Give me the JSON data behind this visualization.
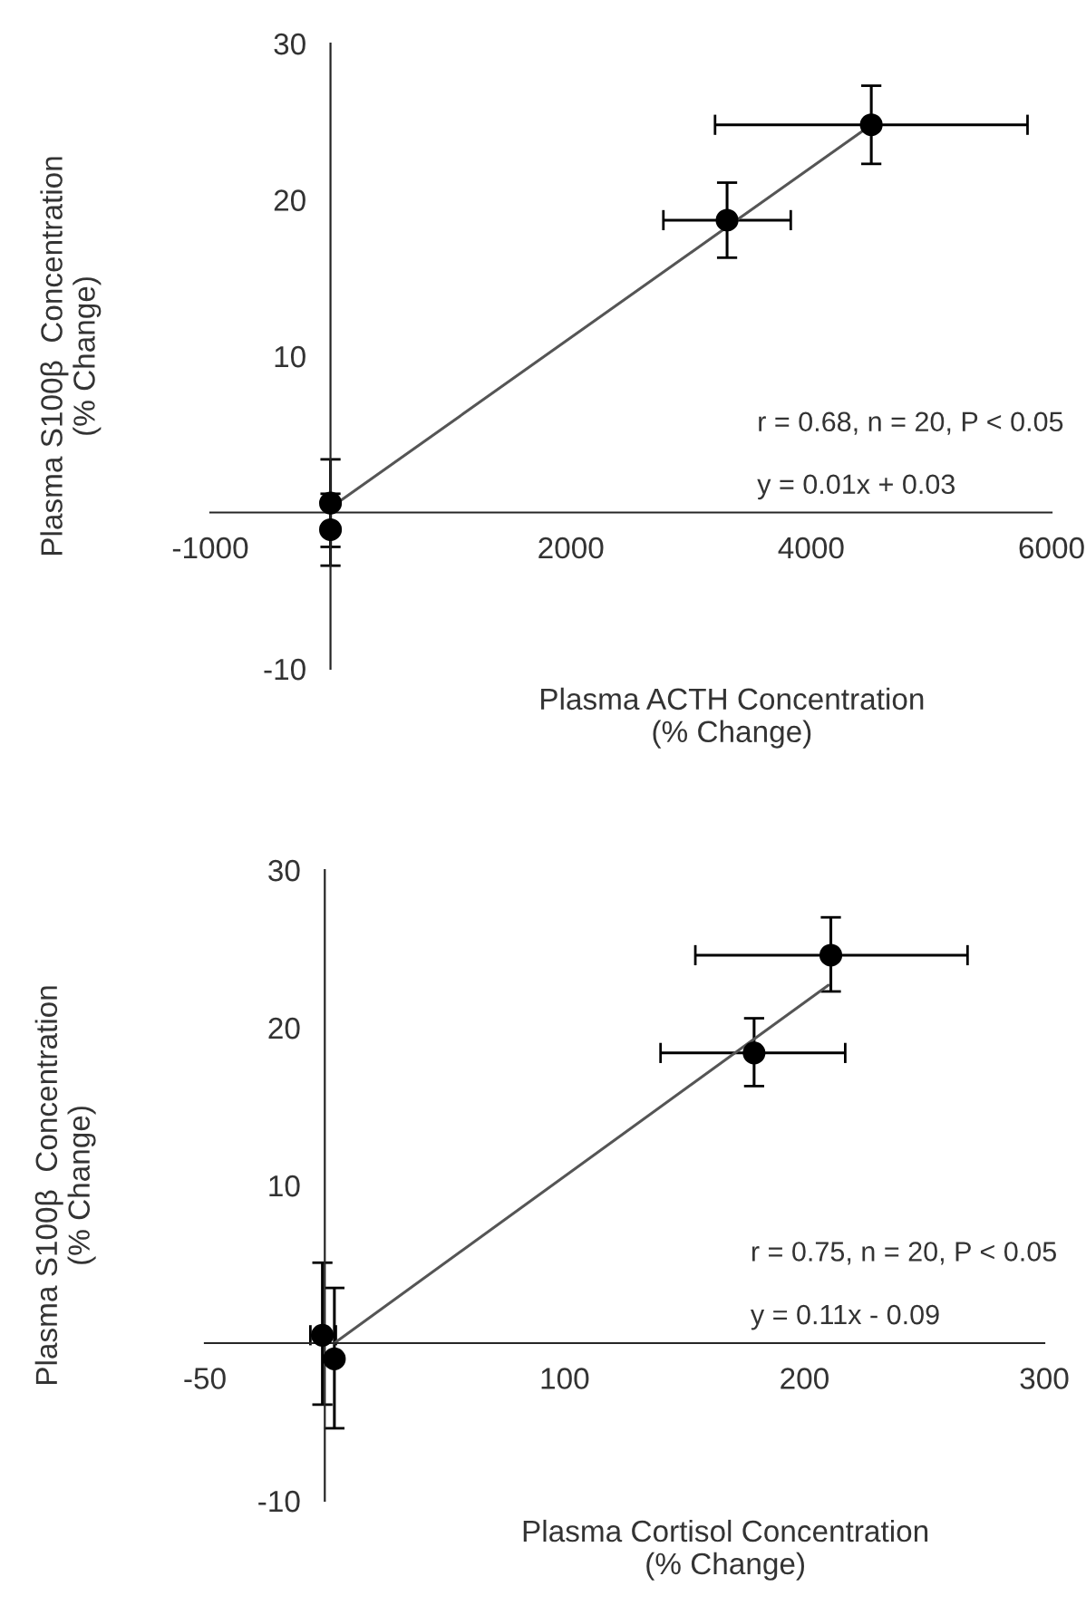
{
  "chart_data": [
    {
      "type": "scatter",
      "xlabel": "Plasma ACTH Concentration\n(% Change)",
      "ylabel": "Plasma S100β  Concentration\n(% Change)",
      "annotations": [
        "r = 0.68, n = 20, P < 0.05",
        "y = 0.01x + 0.03"
      ],
      "xlim": [
        -1000,
        6000
      ],
      "ylim": [
        -10,
        30
      ],
      "xticks": [
        -1000,
        2000,
        4000,
        6000
      ],
      "yticks": [
        -10,
        10,
        20,
        30
      ],
      "grid": false,
      "legend": false,
      "series": [
        {
          "color": "#000000",
          "marker": "circle",
          "x": [
            0,
            0,
            3300,
            4500
          ],
          "values": [
            0.6,
            -1.1,
            18.7,
            24.8
          ],
          "errors": [
            2.8,
            2.3,
            2.4,
            2.5
          ],
          "xerrors": [
            null,
            null,
            530,
            1300
          ]
        },
        {
          "type": "line",
          "marker": "none",
          "color": "#555555",
          "x": [
            0,
            4500
          ],
          "values": [
            0.3,
            24.8
          ]
        }
      ]
    },
    {
      "type": "scatter",
      "xlabel": "Plasma Cortisol Concentration\n(% Change)",
      "ylabel": "Plasma S100β  Concentration\n(% Change)",
      "annotations": [
        "r = 0.75, n = 20, P < 0.05",
        "y = 0.11x - 0.09"
      ],
      "xlim": [
        -50,
        300
      ],
      "ylim": [
        -10,
        30
      ],
      "xticks": [
        -50,
        100,
        200,
        300
      ],
      "yticks": [
        -10,
        10,
        20,
        30
      ],
      "grid": false,
      "legend": false,
      "series": [
        {
          "color": "#000000",
          "marker": "circle",
          "x": [
            -1,
            4,
            179,
            211
          ],
          "values": [
            0.5,
            -1.0,
            18.4,
            24.6
          ],
          "errors": [
            [
              -3.9,
              5.1
            ],
            [
              -5.4,
              3.5
            ],
            [
              16.3,
              20.6
            ],
            [
              22.3,
              27.0
            ]
          ],
          "xerrors": [
            [
              -6,
              4.6
            ],
            null,
            [
              140,
              217
            ],
            [
              154.5,
              268
            ]
          ]
        },
        {
          "type": "line",
          "marker": "none",
          "color": "#555555",
          "x": [
            4,
            210
          ],
          "values": [
            0,
            22.7
          ]
        }
      ]
    }
  ]
}
